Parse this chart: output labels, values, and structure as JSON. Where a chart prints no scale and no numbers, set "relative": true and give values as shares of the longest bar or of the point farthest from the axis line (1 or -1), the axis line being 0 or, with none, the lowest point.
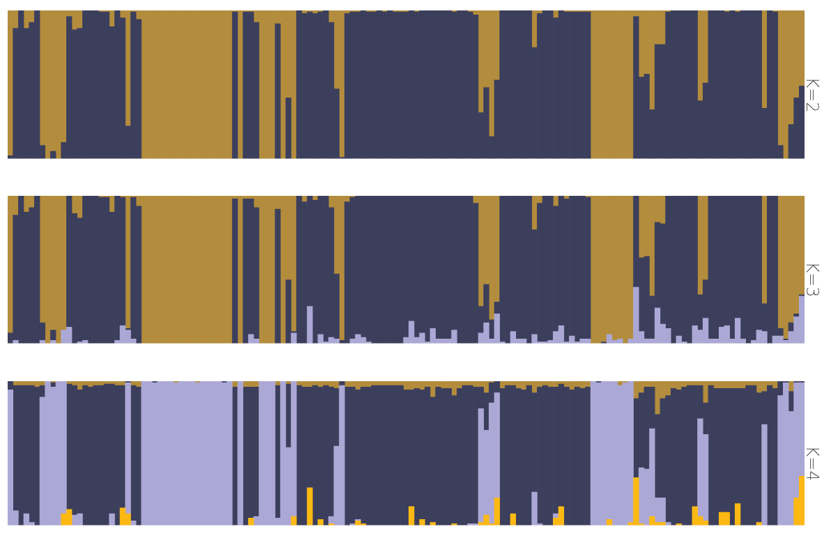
{
  "chart_data": [
    {
      "type": "bar",
      "title": "K=2",
      "stacked": true,
      "relative": true,
      "categories": [
        null,
        null,
        null,
        null,
        null,
        null,
        null,
        null,
        null,
        null,
        null,
        null,
        null,
        null,
        null,
        null,
        null,
        null,
        null,
        null,
        null,
        null,
        null,
        null,
        null,
        null,
        null,
        null,
        null,
        null,
        null,
        null,
        null,
        null,
        null,
        null,
        null,
        null,
        null,
        null,
        null,
        null,
        null,
        null,
        null,
        null,
        null,
        null,
        null,
        null,
        null,
        null,
        null,
        null,
        null,
        null,
        null,
        null,
        null,
        null,
        null,
        null,
        null,
        null,
        null,
        null,
        null,
        null,
        null,
        null,
        null,
        null,
        null,
        null,
        null,
        null,
        null,
        null,
        null,
        null,
        null,
        null,
        null,
        null,
        null,
        null,
        null,
        null,
        null,
        null,
        null,
        null,
        null,
        null,
        null,
        null,
        null,
        null,
        null,
        null,
        null,
        null,
        null,
        null,
        null,
        null,
        null,
        null,
        null,
        null,
        null,
        null,
        null,
        null,
        null,
        null,
        null,
        null,
        null,
        null,
        null,
        null,
        null,
        null,
        null,
        null,
        null,
        null,
        null,
        null,
        null,
        null,
        null,
        null,
        null,
        null,
        null,
        null,
        null,
        null,
        null,
        null,
        null,
        null,
        null,
        null,
        null,
        null,
        null
      ],
      "series": [
        {
          "color": "#3c3f5c",
          "values": [
            0.02,
            0.88,
            1,
            0.88,
            0.92,
            1,
            0.09,
            0,
            0.05,
            0,
            0.11,
            0.96,
            0.87,
            0.88,
            1,
            1,
            1,
            0.99,
            0.99,
            0.89,
            1,
            0.95,
            0.22,
            0.99,
            0.94,
            0,
            0,
            0,
            0,
            0,
            0,
            0,
            0,
            0,
            0,
            0,
            0,
            0,
            0,
            0,
            0,
            0,
            0.99,
            0,
            0.99,
            0.99,
            0.92,
            0,
            0,
            0,
            0.91,
            0,
            0.41,
            0,
            1,
            0.98,
            0.99,
            0.98,
            0.99,
            1,
            0.92,
            0.47,
            0.01,
            0.98,
            0.99,
            0.99,
            1,
            0.99,
            0.99,
            1,
            0.99,
            1,
            0.99,
            0.99,
            0.99,
            1,
            0.99,
            1,
            1,
            1,
            1,
            1,
            1,
            0.99,
            1,
            1,
            0.99,
            0.97,
            0.31,
            0.48,
            0.15,
            0.53,
            1,
            1,
            1,
            1,
            1,
            1,
            0.75,
            0.98,
            1,
            1,
            0.95,
            1,
            0.99,
            0.99,
            0.99,
            0.99,
            0.99,
            0,
            0,
            0,
            0,
            0,
            0,
            0,
            0,
            0.96,
            0.55,
            0.57,
            0.33,
            0.77,
            0.77,
            0.99,
            1,
            1,
            1,
            1,
            1,
            0.39,
            0.51,
            1,
            1,
            1,
            0.99,
            1,
            0.99,
            1,
            1,
            1,
            1,
            0.34,
            1,
            0.99,
            0.09,
            0,
            0.23,
            0.41,
            0.49
          ]
        },
        {
          "color": "#b38d3d",
          "values": [
            0.98,
            0.12,
            0,
            0.12,
            0.08,
            0,
            0.91,
            1,
            0.95,
            1,
            0.89,
            0.04,
            0.13,
            0.12,
            0,
            0,
            0,
            0.01,
            0.01,
            0.11,
            0,
            0.05,
            0.78,
            0.01,
            0.06,
            1,
            1,
            1,
            1,
            1,
            1,
            1,
            1,
            1,
            1,
            1,
            1,
            1,
            1,
            1,
            1,
            1,
            0.01,
            1,
            0.01,
            0.01,
            0.08,
            1,
            1,
            1,
            0.09,
            1,
            0.59,
            1,
            0,
            0.02,
            0.01,
            0.02,
            0.01,
            0,
            0.08,
            0.53,
            0.99,
            0.02,
            0.01,
            0.01,
            0,
            0.01,
            0.01,
            0,
            0.01,
            0,
            0.01,
            0.01,
            0.01,
            0,
            0.01,
            0,
            0,
            0,
            0,
            0,
            0,
            0.01,
            0,
            0,
            0.01,
            0.03,
            0.69,
            0.52,
            0.85,
            0.47,
            0,
            0,
            0,
            0,
            0,
            0,
            0.25,
            0.02,
            0,
            0,
            0.05,
            0,
            0.01,
            0.01,
            0.01,
            0.01,
            0.01,
            1,
            1,
            1,
            1,
            1,
            1,
            1,
            1,
            0.04,
            0.45,
            0.43,
            0.67,
            0.23,
            0.23,
            0.01,
            0,
            0,
            0,
            0,
            0,
            0.61,
            0.49,
            0,
            0,
            0,
            0.01,
            0,
            0.01,
            0,
            0,
            0,
            0,
            0.66,
            0,
            0.01,
            0.91,
            1,
            0.77,
            0.59,
            0.51
          ]
        }
      ]
    },
    {
      "type": "bar",
      "title": "K=3",
      "stacked": true,
      "relative": true,
      "categories": [
        null,
        null,
        null,
        null,
        null,
        null,
        null,
        null,
        null,
        null,
        null,
        null,
        null,
        null,
        null,
        null,
        null,
        null,
        null,
        null,
        null,
        null,
        null,
        null,
        null,
        null,
        null,
        null,
        null,
        null,
        null,
        null,
        null,
        null,
        null,
        null,
        null,
        null,
        null,
        null,
        null,
        null,
        null,
        null,
        null,
        null,
        null,
        null,
        null,
        null,
        null,
        null,
        null,
        null,
        null,
        null,
        null,
        null,
        null,
        null,
        null,
        null,
        null,
        null,
        null,
        null,
        null,
        null,
        null,
        null,
        null,
        null,
        null,
        null,
        null,
        null,
        null,
        null,
        null,
        null,
        null,
        null,
        null,
        null,
        null,
        null,
        null,
        null,
        null,
        null,
        null,
        null,
        null,
        null,
        null,
        null,
        null,
        null,
        null,
        null,
        null,
        null,
        null,
        null,
        null,
        null,
        null,
        null,
        null,
        null,
        null,
        null,
        null,
        null,
        null,
        null,
        null,
        null,
        null,
        null,
        null,
        null,
        null,
        null,
        null,
        null,
        null,
        null,
        null,
        null,
        null,
        null,
        null,
        null,
        null,
        null,
        null,
        null,
        null,
        null,
        null,
        null,
        null,
        null,
        null,
        null,
        null,
        null,
        null
      ],
      "series": [
        {
          "color": "#aca8d6",
          "values": [
            0,
            0.02,
            0,
            0,
            0,
            0,
            0.02,
            0,
            0.02,
            0,
            0.09,
            0.11,
            0,
            0.01,
            0.02,
            0,
            0,
            0,
            0,
            0,
            0.02,
            0.12,
            0.09,
            0.03,
            0,
            0,
            0,
            0,
            0,
            0,
            0,
            0,
            0,
            0,
            0,
            0,
            0,
            0,
            0,
            0,
            0,
            0,
            0,
            0,
            0,
            0.06,
            0.03,
            0,
            0,
            0,
            0,
            0,
            0,
            0.07,
            0,
            0,
            0.25,
            0,
            0.06,
            0.01,
            0.04,
            0.03,
            0,
            0,
            0.03,
            0.06,
            0.04,
            0.01,
            0,
            0,
            0,
            0,
            0,
            0,
            0.04,
            0.15,
            0.04,
            0.07,
            0.01,
            0.1,
            0.03,
            0.03,
            0.03,
            0.09,
            0,
            0,
            0,
            0,
            0.07,
            0.14,
            0.03,
            0.2,
            0.01,
            0,
            0.08,
            0.03,
            0.03,
            0,
            0.06,
            0.01,
            0.01,
            0.02,
            0.08,
            0.12,
            0.01,
            0.05,
            0.01,
            0.03,
            0.03,
            0,
            0,
            0,
            0.06,
            0.02,
            0.03,
            0,
            0.03,
            0.38,
            0.08,
            0.03,
            0.03,
            0.24,
            0.13,
            0.1,
            0,
            0.05,
            0.01,
            0,
            0.12,
            0.09,
            0.17,
            0.03,
            0.03,
            0.11,
            0.12,
            0.03,
            0.17,
            0.03,
            0,
            0.02,
            0.09,
            0.08,
            0,
            0.05,
            0.05,
            0.02,
            0.08,
            0.18,
            0.32
          ]
        },
        {
          "color": "#3c3f5c",
          "values": [
            0.07,
            0.85,
            1,
            0.89,
            0.92,
            1,
            0.12,
            0,
            0.07,
            0,
            0,
            0.89,
            0.88,
            0.84,
            0.98,
            1,
            1,
            0.99,
            0.99,
            0.89,
            0.98,
            0.87,
            0.01,
            0.96,
            0.93,
            0,
            0,
            0,
            0,
            0,
            0,
            0,
            0,
            0,
            0,
            0,
            0,
            0,
            0,
            0,
            0,
            0,
            0.98,
            0,
            0.98,
            0.92,
            0.89,
            0,
            0,
            0,
            0.91,
            0,
            0.43,
            0.01,
            1,
            0.96,
            0.75,
            0.97,
            0.94,
            0.99,
            0.88,
            0.44,
            0.02,
            0.96,
            0.96,
            0.94,
            0.96,
            0.99,
            1,
            1,
            1,
            1,
            1,
            1,
            0.96,
            0.85,
            0.96,
            0.93,
            0.99,
            0.9,
            0.97,
            0.97,
            0.97,
            0.91,
            1,
            1,
            1,
            0.95,
            0.18,
            0.26,
            0.13,
            0.08,
            0.99,
            1,
            0.92,
            0.97,
            0.97,
            1,
            0.71,
            0.94,
            0.99,
            0.98,
            0.85,
            0.88,
            0.97,
            0.95,
            0.99,
            0.97,
            0.96,
            0,
            0,
            0.01,
            0,
            0,
            0,
            0,
            0,
            0.62,
            0.5,
            0.56,
            0.29,
            0.58,
            0.68,
            0.9,
            1,
            0.95,
            0.99,
            1,
            0.88,
            0.24,
            0.26,
            0.97,
            0.97,
            0.89,
            0.88,
            0.97,
            0.83,
            0.97,
            1,
            0.98,
            0.91,
            0.19,
            1,
            0.95,
            0.05,
            0.01,
            0.06,
            0.02,
            0.01
          ]
        },
        {
          "color": "#b38d3d",
          "values": [
            0.93,
            0.13,
            0,
            0.11,
            0.08,
            0,
            0.86,
            1,
            0.91,
            1,
            0.91,
            0,
            0.12,
            0.15,
            0,
            0,
            0,
            0.01,
            0.01,
            0.11,
            0,
            0.01,
            0.9,
            0.01,
            0.07,
            1,
            1,
            1,
            1,
            1,
            1,
            1,
            1,
            1,
            1,
            1,
            1,
            1,
            1,
            1,
            1,
            1,
            0.02,
            1,
            0.02,
            0.02,
            0.08,
            1,
            1,
            1,
            0.09,
            1,
            0.57,
            0.92,
            0,
            0.04,
            0,
            0.03,
            0,
            0,
            0.08,
            0.53,
            0.98,
            0.04,
            0.01,
            0,
            0,
            0,
            0,
            0,
            0,
            0,
            0,
            0,
            0,
            0,
            0,
            0,
            0,
            0,
            0,
            0,
            0,
            0,
            0,
            0,
            0,
            0.05,
            0.75,
            0.6,
            0.84,
            0.72,
            0,
            0,
            0,
            0,
            0,
            0,
            0.23,
            0.05,
            0,
            0,
            0.07,
            0,
            0.02,
            0,
            0,
            0,
            0.01,
            1,
            1,
            0.99,
            0.94,
            0.98,
            0.97,
            1,
            0.97,
            0,
            0.42,
            0.41,
            0.68,
            0.18,
            0.19,
            0,
            0,
            0,
            0,
            0,
            0,
            0.67,
            0.57,
            0,
            0,
            0,
            0,
            0,
            0,
            0,
            0,
            0,
            0,
            0.73,
            0,
            0,
            0.9,
            0.97,
            0.86,
            0.8,
            0.67
          ]
        }
      ]
    },
    {
      "type": "bar",
      "title": "K=4",
      "stacked": true,
      "relative": true,
      "categories": [
        null,
        null,
        null,
        null,
        null,
        null,
        null,
        null,
        null,
        null,
        null,
        null,
        null,
        null,
        null,
        null,
        null,
        null,
        null,
        null,
        null,
        null,
        null,
        null,
        null,
        null,
        null,
        null,
        null,
        null,
        null,
        null,
        null,
        null,
        null,
        null,
        null,
        null,
        null,
        null,
        null,
        null,
        null,
        null,
        null,
        null,
        null,
        null,
        null,
        null,
        null,
        null,
        null,
        null,
        null,
        null,
        null,
        null,
        null,
        null,
        null,
        null,
        null,
        null,
        null,
        null,
        null,
        null,
        null,
        null,
        null,
        null,
        null,
        null,
        null,
        null,
        null,
        null,
        null,
        null,
        null,
        null,
        null,
        null,
        null,
        null,
        null,
        null,
        null,
        null,
        null,
        null,
        null,
        null,
        null,
        null,
        null,
        null,
        null,
        null,
        null,
        null,
        null,
        null,
        null,
        null,
        null,
        null,
        null,
        null,
        null,
        null,
        null,
        null,
        null,
        null,
        null,
        null,
        null,
        null,
        null,
        null,
        null,
        null,
        null,
        null,
        null,
        null,
        null,
        null,
        null,
        null,
        null,
        null,
        null,
        null,
        null,
        null,
        null,
        null,
        null,
        null,
        null,
        null,
        null,
        null,
        null,
        null,
        null
      ],
      "series": [
        {
          "color": "#fdb913",
          "values": [
            0,
            0,
            0,
            0,
            0,
            0,
            0,
            0,
            0,
            0,
            0.08,
            0.11,
            0,
            0,
            0,
            0,
            0,
            0,
            0,
            0,
            0,
            0.12,
            0.08,
            0,
            0,
            0,
            0,
            0,
            0,
            0,
            0,
            0,
            0,
            0,
            0,
            0,
            0,
            0,
            0,
            0,
            0,
            0,
            0,
            0,
            0,
            0.05,
            0,
            0,
            0,
            0,
            0,
            0,
            0,
            0.06,
            0,
            0,
            0.26,
            0,
            0.04,
            0,
            0.01,
            0,
            0,
            0,
            0,
            0.03,
            0.01,
            0,
            0,
            0,
            0,
            0,
            0,
            0,
            0,
            0.13,
            0,
            0.04,
            0,
            0.02,
            0,
            0,
            0,
            0.01,
            0,
            0,
            0,
            0,
            0.02,
            0.07,
            0.01,
            0.19,
            0,
            0,
            0.08,
            0,
            0,
            0,
            0,
            0,
            0,
            0,
            0.05,
            0.13,
            0,
            0,
            0,
            0,
            0,
            0,
            0,
            0,
            0.04,
            0,
            0,
            0,
            0.02,
            0.33,
            0.01,
            0,
            0.06,
            0.02,
            0.02,
            0,
            0,
            0.01,
            0,
            0,
            0.13,
            0.06,
            0.03,
            0,
            0,
            0.09,
            0.09,
            0,
            0.15,
            0,
            0,
            0,
            0.02,
            0,
            0,
            0,
            0,
            0,
            0,
            0.19,
            0.34
          ]
        },
        {
          "color": "#aca8d6",
          "values": [
            0.94,
            0.1,
            0,
            0.08,
            0.02,
            0,
            0.89,
            1,
            0.96,
            1,
            0.92,
            0,
            0.07,
            0.08,
            0,
            0,
            0,
            0,
            0,
            0.08,
            0,
            0,
            0.91,
            0.03,
            0,
            1,
            1,
            0.99,
            1,
            1,
            1,
            0.99,
            1,
            1,
            1,
            0.99,
            1,
            1,
            1,
            1,
            0.99,
            1,
            0,
            1,
            0,
            0,
            0.06,
            1,
            1,
            1,
            0.05,
            1,
            0.54,
            0.94,
            0,
            0,
            0,
            0,
            0,
            0,
            0.05,
            0.55,
            0.97,
            0,
            0.01,
            0.01,
            0,
            0,
            0,
            0,
            0,
            0,
            0,
            0,
            0,
            0,
            0,
            0,
            0,
            0,
            0,
            0,
            0,
            0,
            0,
            0,
            0.01,
            0.01,
            0.79,
            0.59,
            0.84,
            0.73,
            0,
            0,
            0,
            0,
            0,
            0,
            0.23,
            0.01,
            0,
            0,
            0.03,
            0,
            0,
            0,
            0,
            0,
            0,
            1,
            0.99,
            1,
            0.96,
            1,
            0.97,
            0.99,
            0.98,
            0,
            0.39,
            0.39,
            0.61,
            0.17,
            0.17,
            0.02,
            0,
            0,
            0,
            0,
            0,
            0.68,
            0.6,
            0,
            0,
            0,
            0,
            0,
            0,
            0,
            0,
            0,
            0,
            0.7,
            0,
            0,
            0.9,
            0.99,
            0.79,
            0.8,
            0.65
          ]
        },
        {
          "color": "#3c3f5c",
          "values": [
            0.06,
            0.87,
            0.97,
            0.89,
            0.95,
            0.96,
            0.08,
            0,
            0.03,
            0,
            0,
            0.87,
            0.9,
            0.86,
            0.97,
            0.96,
            0.97,
            0.97,
            0.98,
            0.9,
            0.97,
            0.85,
            0.01,
            0.94,
            0.96,
            0,
            0,
            0.01,
            0,
            0,
            0,
            0,
            0,
            0,
            0,
            0,
            0,
            0,
            0,
            0,
            0.01,
            0,
            0.96,
            0,
            0.96,
            0.91,
            0.9,
            0,
            0,
            0,
            0.92,
            0,
            0.44,
            0,
            0.97,
            0.96,
            0.7,
            0.97,
            0.92,
            0.97,
            0.9,
            0.4,
            0.03,
            0.96,
            0.95,
            0.9,
            0.95,
            0.96,
            0.97,
            0.97,
            0.97,
            0.97,
            0.97,
            0.97,
            0.94,
            0.81,
            0.95,
            0.9,
            0.96,
            0.87,
            0.96,
            0.95,
            0.95,
            0.89,
            0.95,
            0.97,
            0.96,
            0.95,
            0.15,
            0.26,
            0.14,
            0.08,
            0.95,
            0.97,
            0.89,
            0.95,
            0.94,
            0.97,
            0.69,
            0.95,
            0.97,
            0.96,
            0.88,
            0.85,
            0.96,
            0.94,
            0.96,
            0.95,
            0.96,
            0,
            0.01,
            0,
            0,
            0,
            0,
            0,
            0,
            0.55,
            0.52,
            0.57,
            0.29,
            0.58,
            0.69,
            0.88,
            0.95,
            0.93,
            0.96,
            0.97,
            0.84,
            0.23,
            0.22,
            0.97,
            0.95,
            0.86,
            0.86,
            0.95,
            0.8,
            0.95,
            0.97,
            0.97,
            0.9,
            0.23,
            0.97,
            0.95,
            0.1,
            0.01,
            0.14,
            0.01,
            0.01
          ]
        },
        {
          "color": "#b38d3d",
          "values": [
            0,
            0.03,
            0.03,
            0.03,
            0.03,
            0.04,
            0.03,
            0,
            0.01,
            0,
            0,
            0.02,
            0.03,
            0.06,
            0.03,
            0.04,
            0.03,
            0.03,
            0.02,
            0.02,
            0.03,
            0.03,
            0,
            0.03,
            0.04,
            0,
            0,
            0,
            0,
            0,
            0,
            0.01,
            0,
            0,
            0,
            0.01,
            0,
            0,
            0,
            0,
            0,
            0,
            0.04,
            0,
            0.04,
            0.04,
            0.04,
            0,
            0,
            0,
            0.03,
            0,
            0.02,
            0,
            0.03,
            0.04,
            0.04,
            0.03,
            0.04,
            0.03,
            0.04,
            0.05,
            0,
            0.04,
            0.04,
            0.06,
            0.04,
            0.04,
            0.03,
            0.03,
            0.03,
            0.03,
            0.03,
            0.03,
            0.06,
            0.06,
            0.05,
            0.06,
            0.04,
            0.11,
            0.04,
            0.05,
            0.05,
            0.1,
            0.05,
            0.03,
            0.03,
            0.04,
            0.04,
            0.08,
            0.01,
            0,
            0.05,
            0.03,
            0.03,
            0.05,
            0.06,
            0.03,
            0.08,
            0.04,
            0.03,
            0.04,
            0.04,
            0.02,
            0.04,
            0.06,
            0.04,
            0.05,
            0.04,
            0,
            0,
            0,
            0,
            0,
            0.03,
            0.01,
            0,
            0.12,
            0.08,
            0.04,
            0.04,
            0.23,
            0.12,
            0.1,
            0.05,
            0.06,
            0.04,
            0.03,
            0.03,
            0.03,
            0.15,
            0.03,
            0.05,
            0.05,
            0.05,
            0.05,
            0.05,
            0.05,
            0.03,
            0.03,
            0.08,
            0.07,
            0.03,
            0.05,
            0,
            0,
            0.07,
            0,
            0
          ]
        }
      ]
    }
  ]
}
